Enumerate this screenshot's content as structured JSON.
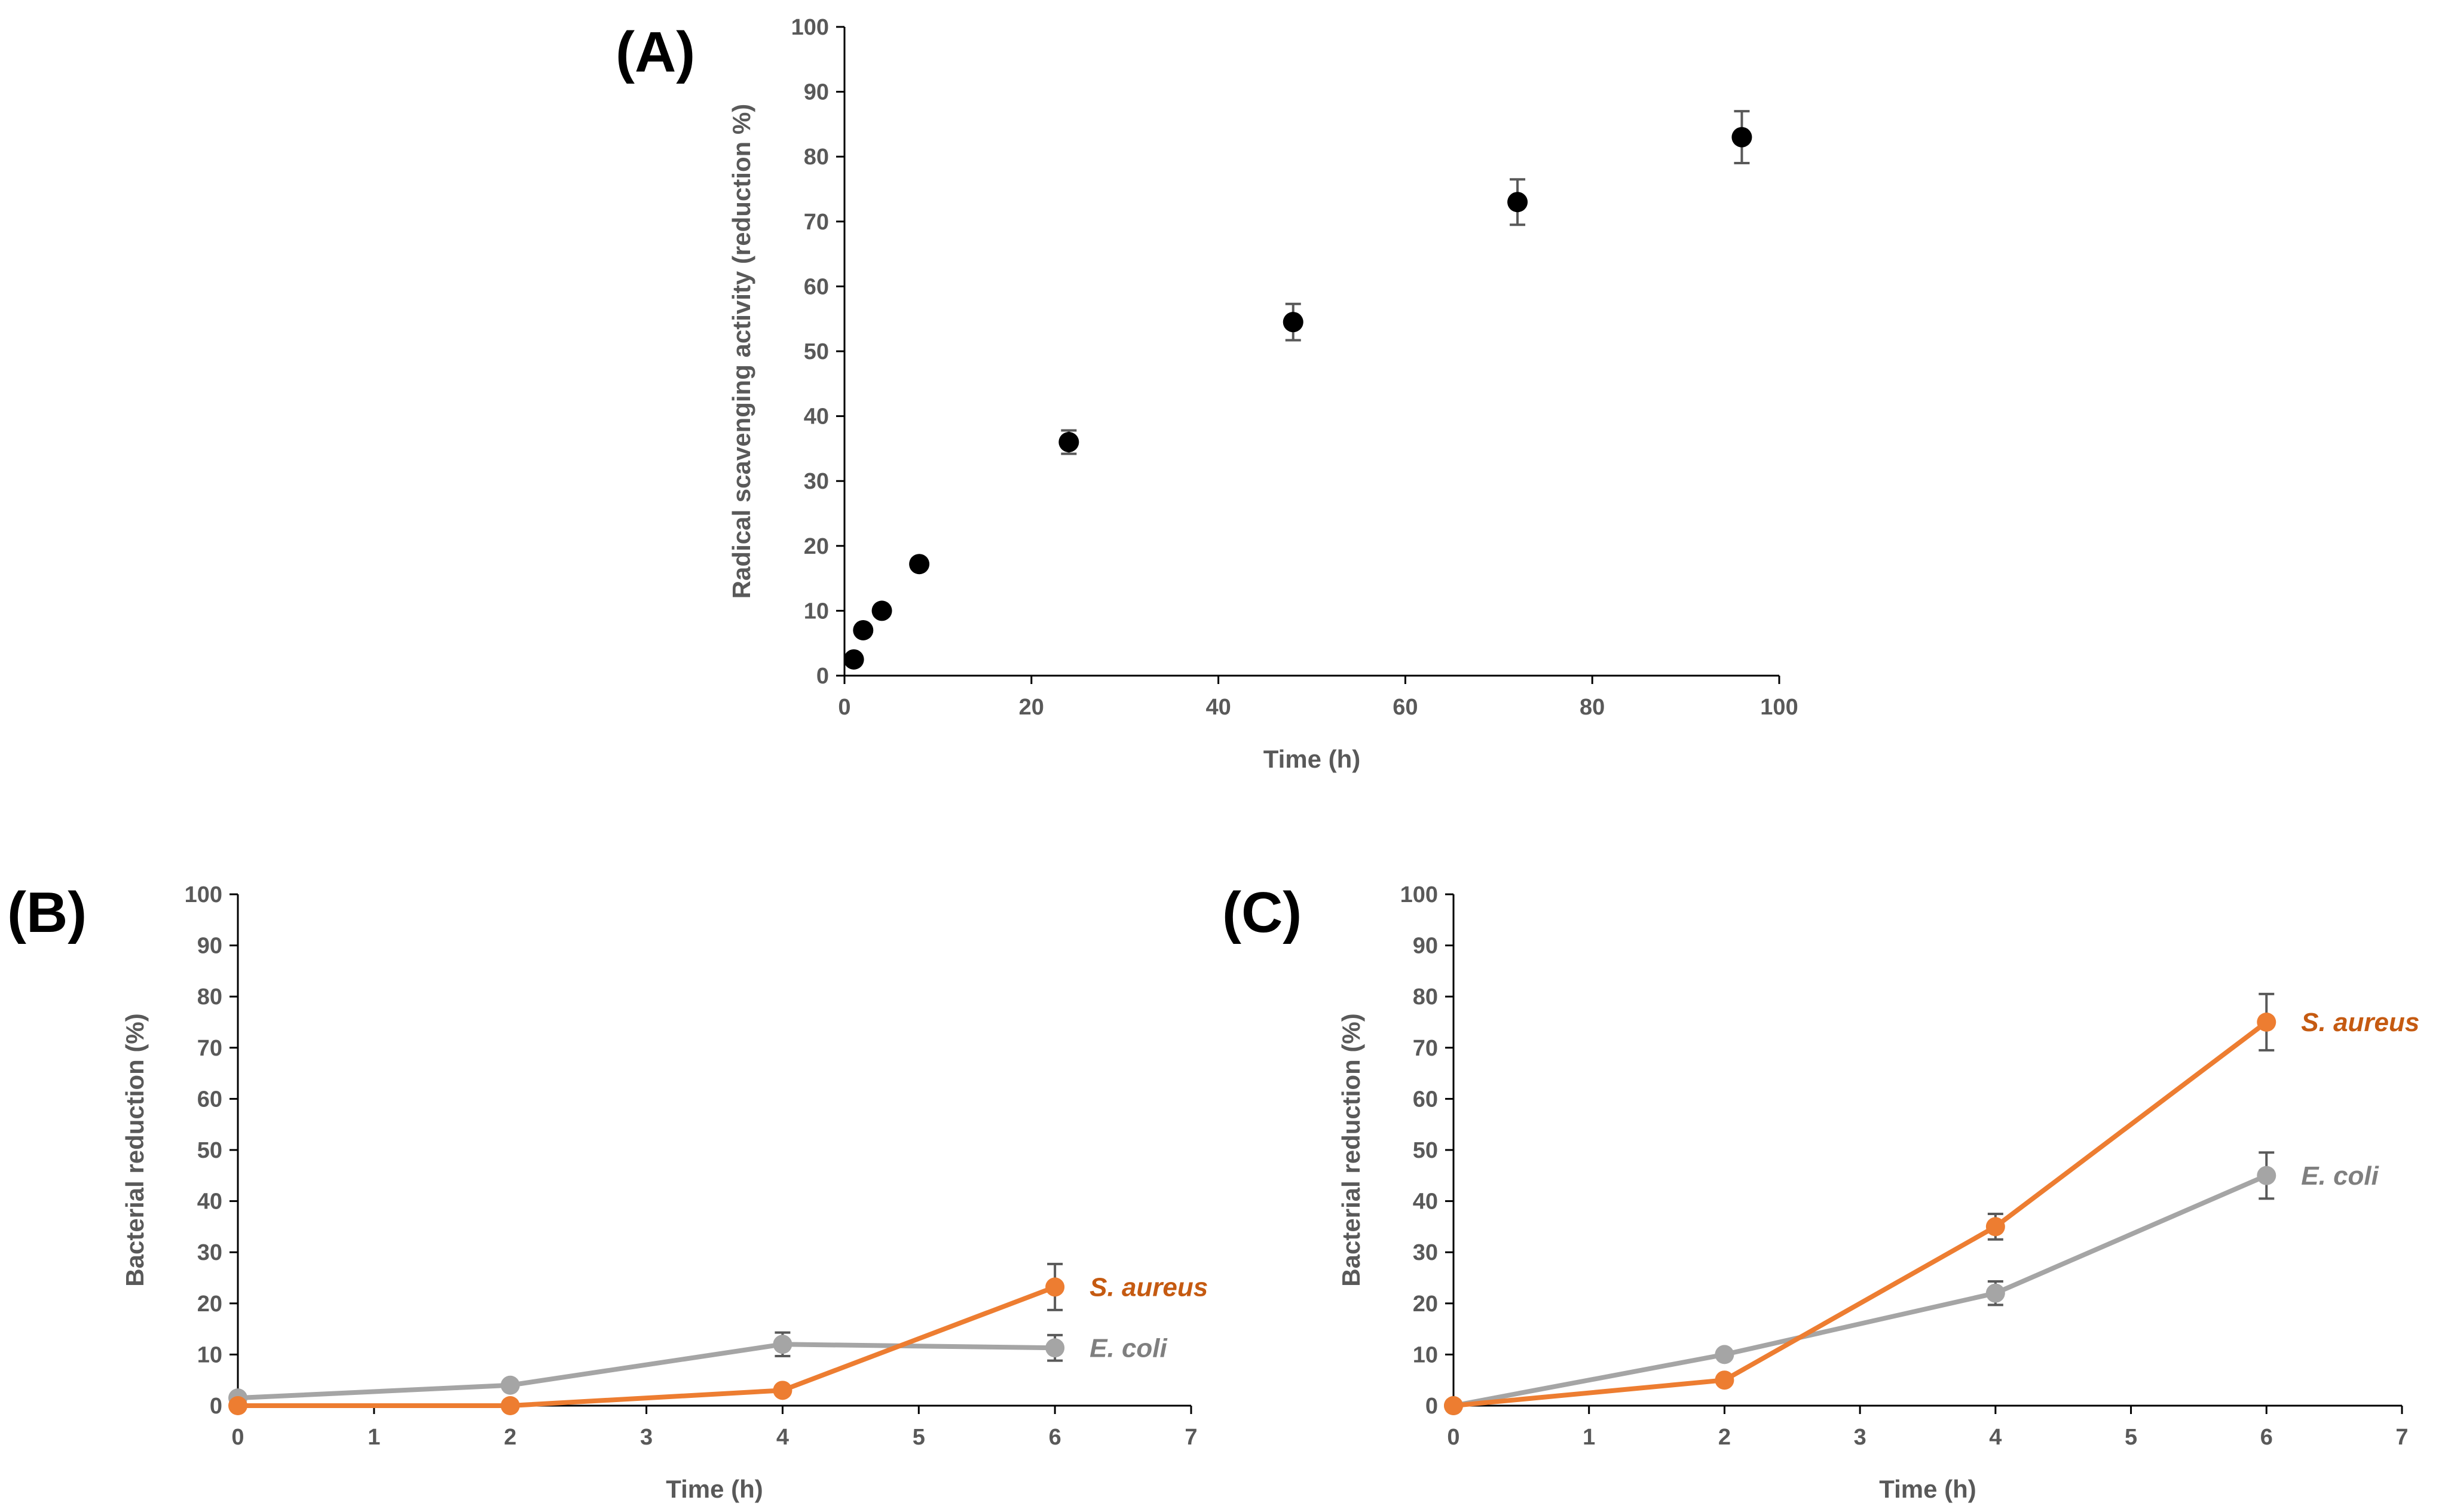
{
  "chart_data": [
    {
      "id": "A",
      "panel_label": "(A)",
      "type": "scatter",
      "xlabel": "Time (h)",
      "ylabel": "Radical scavenging activity (reduction %)",
      "xlim": [
        0,
        100
      ],
      "ylim": [
        0,
        100
      ],
      "xticks": [
        0,
        20,
        40,
        60,
        80,
        100
      ],
      "yticks": [
        0,
        10,
        20,
        30,
        40,
        50,
        60,
        70,
        80,
        90,
        100
      ],
      "colors": {
        "point": "#000000",
        "error": "#595959"
      },
      "series": [
        {
          "name": "Radical scavenging activity",
          "x": [
            1,
            2,
            4,
            8,
            24,
            48,
            72,
            96
          ],
          "y": [
            2.5,
            7,
            10,
            17.2,
            36,
            54.5,
            73,
            83
          ],
          "err": [
            0,
            0,
            0,
            0,
            1.8,
            2.8,
            3.5,
            4
          ]
        }
      ]
    },
    {
      "id": "B",
      "panel_label": "(B)",
      "type": "line",
      "xlabel": "Time (h)",
      "ylabel": "Bacterial reduction (%)",
      "xlim": [
        0,
        7
      ],
      "ylim": [
        0,
        100
      ],
      "xticks": [
        0,
        1,
        2,
        3,
        4,
        5,
        6,
        7
      ],
      "yticks": [
        0,
        10,
        20,
        30,
        40,
        50,
        60,
        70,
        80,
        90,
        100
      ],
      "colors": {
        "error": "#595959"
      },
      "series": [
        {
          "name": "E. coli",
          "color": "#A5A5A5",
          "label_color": "#7F7F7F",
          "x": [
            0,
            2,
            4,
            6
          ],
          "y": [
            1.5,
            4,
            12,
            11.3
          ],
          "err": [
            0,
            0,
            2.3,
            2.5
          ]
        },
        {
          "name": "S. aureus",
          "color": "#ED7D31",
          "label_color": "#C55A11",
          "x": [
            0,
            2,
            4,
            6
          ],
          "y": [
            0,
            0,
            3,
            23.2
          ],
          "err": [
            0,
            0,
            0,
            4.5
          ]
        }
      ]
    },
    {
      "id": "C",
      "panel_label": "(C)",
      "type": "line",
      "xlabel": "Time (h)",
      "ylabel": "Bacterial reduction (%)",
      "xlim": [
        0,
        7
      ],
      "ylim": [
        0,
        100
      ],
      "xticks": [
        0,
        1,
        2,
        3,
        4,
        5,
        6,
        7
      ],
      "yticks": [
        0,
        10,
        20,
        30,
        40,
        50,
        60,
        70,
        80,
        90,
        100
      ],
      "colors": {
        "error": "#595959"
      },
      "series": [
        {
          "name": "E. coli",
          "color": "#A5A5A5",
          "label_color": "#7F7F7F",
          "x": [
            0,
            2,
            4,
            6
          ],
          "y": [
            0,
            10,
            22,
            45
          ],
          "err": [
            0,
            0,
            2.3,
            4.5
          ]
        },
        {
          "name": "S. aureus",
          "color": "#ED7D31",
          "label_color": "#C55A11",
          "x": [
            0,
            2,
            4,
            6
          ],
          "y": [
            0,
            5,
            35,
            75
          ],
          "err": [
            0,
            0,
            2.5,
            5.5
          ]
        }
      ]
    }
  ]
}
